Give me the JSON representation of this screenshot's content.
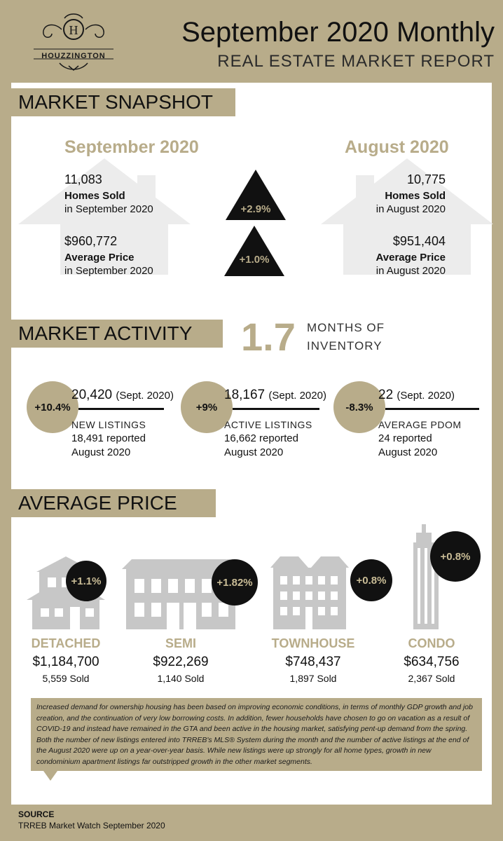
{
  "header": {
    "logo_text": "HOUZZINGTON",
    "logo_letter": "H",
    "title": "September 2020 Monthly",
    "subtitle": "REAL ESTATE MARKET REPORT"
  },
  "snapshot": {
    "section_label": "MARKET SNAPSHOT",
    "current": {
      "heading": "September 2020",
      "homes_sold_value": "11,083",
      "homes_sold_label": "Homes Sold",
      "homes_sold_period": "in September 2020",
      "avg_price_value": "$960,772",
      "avg_price_label": "Average Price",
      "avg_price_period": "in September 2020"
    },
    "previous": {
      "heading": "August 2020",
      "homes_sold_value": "10,775",
      "homes_sold_label": "Homes Sold",
      "homes_sold_period": "in August 2020",
      "avg_price_value": "$951,404",
      "avg_price_label": "Average Price",
      "avg_price_period": "in August 2020"
    },
    "homes_sold_change": "+2.9%",
    "avg_price_change": "+1.0%"
  },
  "activity": {
    "section_label": "MARKET ACTIVITY",
    "months_of_inventory_value": "1.7",
    "months_of_inventory_line1": "MONTHS OF",
    "months_of_inventory_line2": "INVENTORY",
    "items": [
      {
        "change": "+10.4%",
        "value": "20,420",
        "period": "(Sept. 2020)",
        "label": "NEW LISTINGS",
        "previous_line1": "18,491  reported",
        "previous_line2": "August 2020"
      },
      {
        "change": "+9%",
        "value": "18,167",
        "period": "(Sept. 2020)",
        "label": "ACTIVE LISTINGS",
        "previous_line1": "16,662  reported",
        "previous_line2": "August 2020"
      },
      {
        "change": "-8.3%",
        "value": "22",
        "period": "(Sept. 2020)",
        "label": "AVERAGE PDOM",
        "previous_line1": "24  reported",
        "previous_line2": "August 2020"
      }
    ]
  },
  "average_price": {
    "section_label": "AVERAGE PRICE",
    "types": [
      {
        "name": "DETACHED",
        "change": "+1.1%",
        "price": "$1,184,700",
        "sold": "5,559 Sold",
        "icon": "detached-house-icon"
      },
      {
        "name": "SEMI",
        "change": "+1.82%",
        "price": "$922,269",
        "sold": "1,140 Sold",
        "icon": "semi-house-icon"
      },
      {
        "name": "TOWNHOUSE",
        "change": "+0.8%",
        "price": "$748,437",
        "sold": "1,897 Sold",
        "icon": "townhouse-icon"
      },
      {
        "name": "CONDO",
        "change": "+0.8%",
        "price": "$634,756",
        "sold": "2,367 Sold",
        "icon": "condo-tower-icon"
      }
    ]
  },
  "note": "Increased demand for ownership housing has been based on improving economic conditions, in terms of monthly GDP growth and job creation, and the continuation of very low borrowing costs. In addition, fewer households have chosen to go on vacation as a result of COVID-19 and instead have remained in the GTA and been active in the housing market, satisfying pent-up demand from the spring.  Both the number of new listings entered into TRREB's MLS® System during the month and the number of active listings at the end of the August 2020 were up on a year-over-year basis. While new listings were up strongly for all home types, growth in new condominium apartment listings far outstripped growth in the other market segments.",
  "source": {
    "title": "SOURCE",
    "text": "TRREB Market Watch September 2020"
  },
  "colors": {
    "accent": "#b8ac8a",
    "dark": "#111111",
    "frame": "#2b3a56",
    "icon_gray": "#c7c7c7"
  }
}
